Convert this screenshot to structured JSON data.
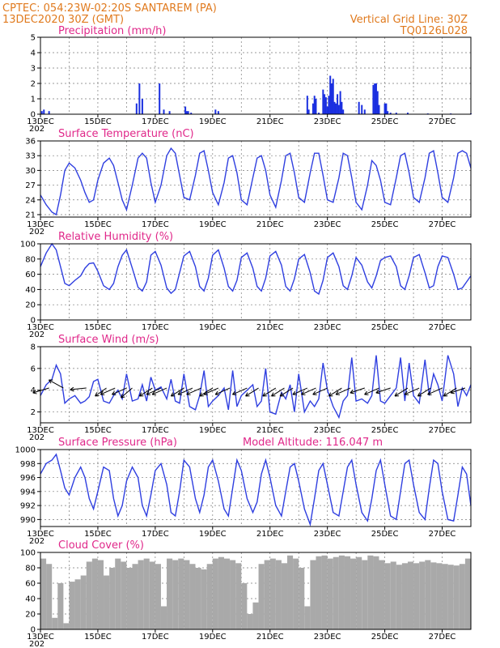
{
  "header": {
    "line1": "CPTEC:   054:23W-02:20S   SANTAREM (PA)",
    "line2": "13DEC2020 30Z (GMT)",
    "grid_note": "Vertical Grid Line: 30Z",
    "run_code": "TQ0126L028"
  },
  "colors": {
    "header": "#e07a1e",
    "title": "#e0288a",
    "line": "#2f3fe0",
    "bar": "#1a2fe0",
    "cloud": "#a9a9a9"
  },
  "chart_data": [
    {
      "type": "bar",
      "title": "Precipitation (mm/h)",
      "ylim": [
        0,
        5
      ],
      "yticks": [
        "0",
        "1",
        "2",
        "3",
        "4",
        "5"
      ],
      "x_tick_labels": [
        "13DEC",
        "15DEC",
        "17DEC",
        "19DEC",
        "21DEC",
        "23DEC",
        "25DEC",
        "27DEC"
      ],
      "x_edge_label": "202",
      "x": [
        0.05,
        0.12,
        0.3,
        3.35,
        3.45,
        3.55,
        4.15,
        4.3,
        4.5,
        5.05,
        5.1,
        5.15,
        5.25,
        6.1,
        6.2,
        9.3,
        9.35,
        9.5,
        9.55,
        9.6,
        9.7,
        9.85,
        9.9,
        9.95,
        10.0,
        10.05,
        10.1,
        10.15,
        10.2,
        10.25,
        10.3,
        10.35,
        10.4,
        10.45,
        10.5,
        10.55,
        11.1,
        11.2,
        11.3,
        11.6,
        11.65,
        11.7,
        11.75,
        11.8,
        12.0,
        12.05,
        12.1,
        12.2,
        12.4,
        12.8,
        13.5,
        14.3,
        15.0
      ],
      "values": [
        0.2,
        0.3,
        0.2,
        0.7,
        2.0,
        1.0,
        2.0,
        0.3,
        0.2,
        0.5,
        0.2,
        0.2,
        0.1,
        0.3,
        0.2,
        1.2,
        0.3,
        0.7,
        1.2,
        1.0,
        0.1,
        1.6,
        1.3,
        1.1,
        0.5,
        1.2,
        2.5,
        2.0,
        2.3,
        0.8,
        0.7,
        1.3,
        0.6,
        1.5,
        0.8,
        0.3,
        0.8,
        0.6,
        0.3,
        1.9,
        2.0,
        2.0,
        1.5,
        0.6,
        0.7,
        0.7,
        0.2,
        0.1,
        0.1,
        0.1,
        0.05,
        0.05,
        0.05
      ]
    },
    {
      "type": "line",
      "title": "Surface Temperature (nC)",
      "ylim": [
        20.5,
        36
      ],
      "yticks": [
        "21",
        "24",
        "27",
        "30",
        "33",
        "36"
      ],
      "x_tick_labels": [
        "13DEC",
        "15DEC",
        "17DEC",
        "19DEC",
        "21DEC",
        "23DEC",
        "25DEC",
        "27DEC"
      ],
      "x_edge_label": "202",
      "x": [
        0,
        0.2,
        0.4,
        0.55,
        0.7,
        0.85,
        1.0,
        1.2,
        1.4,
        1.55,
        1.7,
        1.85,
        2.0,
        2.2,
        2.4,
        2.55,
        2.7,
        2.85,
        3.0,
        3.2,
        3.4,
        3.55,
        3.7,
        3.85,
        4.0,
        4.2,
        4.4,
        4.55,
        4.7,
        4.85,
        5.0,
        5.2,
        5.4,
        5.55,
        5.7,
        5.85,
        6.0,
        6.2,
        6.4,
        6.55,
        6.7,
        6.85,
        7.0,
        7.2,
        7.4,
        7.55,
        7.7,
        7.85,
        8.0,
        8.2,
        8.4,
        8.55,
        8.7,
        8.85,
        9.0,
        9.2,
        9.4,
        9.55,
        9.7,
        9.85,
        10.0,
        10.2,
        10.4,
        10.55,
        10.7,
        10.85,
        11.0,
        11.2,
        11.4,
        11.55,
        11.7,
        11.85,
        12.0,
        12.2,
        12.4,
        12.55,
        12.7,
        12.85,
        13.0,
        13.2,
        13.4,
        13.55,
        13.7,
        13.85,
        14.0,
        14.2,
        14.4,
        14.55,
        14.7,
        14.85,
        15.0
      ],
      "values": [
        25.0,
        23.0,
        21.5,
        21.0,
        25.0,
        30.0,
        31.5,
        30.5,
        28.0,
        25.5,
        23.5,
        24.0,
        28.0,
        31.5,
        32.5,
        31.0,
        27.5,
        24.0,
        22.0,
        27.0,
        32.5,
        33.5,
        32.5,
        27.5,
        23.5,
        27.0,
        33.0,
        34.5,
        33.5,
        29.0,
        24.5,
        24.0,
        29.0,
        33.5,
        34.0,
        30.0,
        25.5,
        23.0,
        27.5,
        32.5,
        33.0,
        29.5,
        24.0,
        23.0,
        28.5,
        32.5,
        33.0,
        30.0,
        25.0,
        22.5,
        28.0,
        33.0,
        33.5,
        29.5,
        24.5,
        23.5,
        29.5,
        33.5,
        33.5,
        29.0,
        24.0,
        23.5,
        28.5,
        33.5,
        33.0,
        28.5,
        23.5,
        22.0,
        27.0,
        32.0,
        31.0,
        28.0,
        23.5,
        23.0,
        28.5,
        33.0,
        33.5,
        29.5,
        24.5,
        23.5,
        28.5,
        33.5,
        34.0,
        29.5,
        24.5,
        23.5,
        28.5,
        33.5,
        34.0,
        33.5,
        30.5
      ]
    },
    {
      "type": "line",
      "title": "Relative Humidity (%)",
      "ylim": [
        0,
        100
      ],
      "yticks": [
        "0",
        "20",
        "40",
        "60",
        "80",
        "100"
      ],
      "x_tick_labels": [
        "13DEC",
        "15DEC",
        "17DEC",
        "19DEC",
        "21DEC",
        "23DEC",
        "25DEC",
        "27DEC"
      ],
      "x_edge_label": "202",
      "x": [
        0,
        0.2,
        0.4,
        0.55,
        0.7,
        0.85,
        1.0,
        1.2,
        1.4,
        1.55,
        1.7,
        1.85,
        2.0,
        2.2,
        2.4,
        2.55,
        2.7,
        2.85,
        3.0,
        3.2,
        3.4,
        3.55,
        3.7,
        3.85,
        4.0,
        4.2,
        4.4,
        4.55,
        4.7,
        4.85,
        5.0,
        5.2,
        5.4,
        5.55,
        5.7,
        5.85,
        6.0,
        6.2,
        6.4,
        6.55,
        6.7,
        6.85,
        7.0,
        7.2,
        7.4,
        7.55,
        7.7,
        7.85,
        8.0,
        8.2,
        8.4,
        8.55,
        8.7,
        8.85,
        9.0,
        9.2,
        9.4,
        9.55,
        9.7,
        9.85,
        10.0,
        10.2,
        10.4,
        10.55,
        10.7,
        10.85,
        11.0,
        11.2,
        11.4,
        11.55,
        11.7,
        11.85,
        12.0,
        12.2,
        12.4,
        12.55,
        12.7,
        12.85,
        13.0,
        13.2,
        13.4,
        13.55,
        13.7,
        13.85,
        14.0,
        14.2,
        14.4,
        14.55,
        14.7,
        14.85,
        15.0
      ],
      "values": [
        70,
        88,
        100,
        92,
        70,
        48,
        45,
        52,
        58,
        68,
        74,
        75,
        64,
        45,
        40,
        48,
        70,
        85,
        92,
        68,
        43,
        38,
        50,
        85,
        90,
        72,
        42,
        35,
        40,
        62,
        84,
        90,
        70,
        44,
        38,
        55,
        85,
        92,
        68,
        44,
        38,
        52,
        82,
        88,
        68,
        44,
        38,
        55,
        84,
        90,
        72,
        44,
        38,
        54,
        80,
        86,
        62,
        38,
        34,
        52,
        82,
        88,
        70,
        45,
        40,
        58,
        82,
        72,
        50,
        42,
        58,
        78,
        82,
        84,
        70,
        45,
        40,
        58,
        82,
        86,
        62,
        42,
        45,
        70,
        84,
        82,
        60,
        40,
        42,
        50,
        58
      ]
    },
    {
      "type": "line",
      "title": "Surface Wind (m/s)",
      "ylim": [
        1,
        8
      ],
      "yticks": [
        "2",
        "4",
        "6",
        "8"
      ],
      "x_tick_labels": [
        "13DEC",
        "15DEC",
        "17DEC",
        "19DEC",
        "21DEC",
        "23DEC",
        "25DEC",
        "27DEC"
      ],
      "x_edge_label": "202",
      "x": [
        0,
        0.2,
        0.4,
        0.55,
        0.7,
        0.85,
        1.0,
        1.2,
        1.4,
        1.55,
        1.7,
        1.85,
        2.0,
        2.2,
        2.4,
        2.55,
        2.7,
        2.85,
        3.0,
        3.2,
        3.4,
        3.55,
        3.7,
        3.85,
        4.0,
        4.2,
        4.4,
        4.55,
        4.7,
        4.85,
        5.0,
        5.2,
        5.4,
        5.55,
        5.7,
        5.85,
        6.0,
        6.2,
        6.4,
        6.55,
        6.7,
        6.85,
        7.0,
        7.2,
        7.4,
        7.55,
        7.7,
        7.85,
        8.0,
        8.2,
        8.4,
        8.55,
        8.7,
        8.85,
        9.0,
        9.2,
        9.4,
        9.55,
        9.7,
        9.85,
        10.0,
        10.2,
        10.4,
        10.55,
        10.7,
        10.85,
        11.0,
        11.2,
        11.4,
        11.55,
        11.7,
        11.85,
        12.0,
        12.2,
        12.4,
        12.55,
        12.7,
        12.85,
        13.0,
        13.2,
        13.4,
        13.55,
        13.7,
        13.85,
        14.0,
        14.2,
        14.4,
        14.55,
        14.7,
        14.85,
        15.0
      ],
      "values": [
        3.5,
        4.5,
        5.0,
        6.3,
        5.5,
        2.8,
        3.2,
        3.5,
        2.8,
        3.0,
        3.4,
        4.8,
        5.0,
        3.0,
        2.8,
        3.5,
        4.0,
        3.2,
        5.5,
        3.0,
        3.2,
        4.5,
        3.0,
        5.2,
        4.0,
        4.3,
        3.2,
        5.0,
        3.0,
        2.8,
        5.5,
        2.5,
        2.2,
        3.5,
        5.8,
        2.5,
        3.0,
        3.5,
        4.2,
        2.2,
        5.8,
        2.5,
        3.5,
        4.0,
        4.5,
        2.5,
        3.0,
        6.0,
        2.0,
        1.8,
        3.8,
        3.2,
        4.5,
        2.0,
        5.5,
        2.0,
        3.0,
        2.5,
        3.2,
        6.5,
        4.0,
        2.5,
        1.5,
        3.0,
        3.5,
        7.0,
        3.0,
        3.2,
        2.8,
        3.5,
        7.2,
        3.0,
        2.8,
        3.5,
        4.2,
        7.0,
        3.0,
        6.5,
        3.5,
        2.8,
        6.8,
        3.5,
        5.5,
        4.5,
        3.0,
        7.2,
        5.5,
        2.5,
        4.2,
        3.5,
        4.5
      ],
      "arrows_x": [
        0.3,
        0.8,
        1.6,
        2.3,
        2.6,
        3.0,
        3.2,
        3.9,
        4.2,
        4.4,
        5.0,
        5.3,
        5.6,
        6.0,
        6.2,
        6.6,
        7.2,
        7.6,
        8.2,
        8.5,
        8.8,
        9.3,
        9.6,
        10.0,
        10.5,
        10.8,
        11.3,
        11.8,
        12.2,
        12.8,
        13.2,
        13.6,
        14.0,
        14.5,
        14.8
      ],
      "arrows_u": [
        -1.0,
        -0.9,
        -1.0,
        -0.7,
        -0.9,
        -0.9,
        -0.7,
        -0.8,
        -0.9,
        -0.9,
        -0.8,
        -0.9,
        -0.9,
        -0.8,
        -0.9,
        -0.9,
        -0.9,
        -0.8,
        -0.8,
        -0.8,
        -0.8,
        -0.9,
        -0.9,
        -0.9,
        -0.8,
        -0.9,
        -0.9,
        -0.9,
        -0.9,
        -0.8,
        -0.9,
        -0.8,
        -0.9,
        -0.8,
        -0.9
      ],
      "arrows_v": [
        -0.3,
        0.5,
        -0.1,
        -0.5,
        -0.4,
        -0.4,
        -0.6,
        -0.5,
        -0.4,
        -0.4,
        -0.5,
        -0.4,
        -0.4,
        -0.5,
        -0.4,
        -0.4,
        -0.4,
        -0.5,
        -0.5,
        -0.5,
        -0.5,
        -0.4,
        -0.4,
        -0.4,
        -0.5,
        -0.4,
        -0.3,
        -0.4,
        -0.3,
        -0.5,
        -0.4,
        -0.5,
        -0.4,
        -0.5,
        -0.3
      ]
    },
    {
      "type": "line",
      "title": "Surface Pressure (hPa)",
      "annotation": "Model Altitude: 116.047 m",
      "ylim": [
        989,
        1000
      ],
      "yticks": [
        "990",
        "992",
        "994",
        "996",
        "998",
        "1000"
      ],
      "x_tick_labels": [
        "13DEC",
        "15DEC",
        "17DEC",
        "19DEC",
        "21DEC",
        "23DEC",
        "25DEC",
        "27DEC"
      ],
      "x_edge_label": "202",
      "x": [
        0,
        0.2,
        0.4,
        0.55,
        0.7,
        0.85,
        1.0,
        1.2,
        1.4,
        1.55,
        1.7,
        1.85,
        2.0,
        2.2,
        2.4,
        2.55,
        2.7,
        2.85,
        3.0,
        3.2,
        3.4,
        3.55,
        3.7,
        3.85,
        4.0,
        4.2,
        4.4,
        4.55,
        4.7,
        4.85,
        5.0,
        5.2,
        5.4,
        5.55,
        5.7,
        5.85,
        6.0,
        6.2,
        6.4,
        6.55,
        6.7,
        6.85,
        7.0,
        7.2,
        7.4,
        7.55,
        7.7,
        7.85,
        8.0,
        8.2,
        8.4,
        8.55,
        8.7,
        8.85,
        9.0,
        9.2,
        9.4,
        9.55,
        9.7,
        9.85,
        10.0,
        10.2,
        10.4,
        10.55,
        10.7,
        10.85,
        11.0,
        11.2,
        11.4,
        11.55,
        11.7,
        11.85,
        12.0,
        12.2,
        12.4,
        12.55,
        12.7,
        12.85,
        13.0,
        13.2,
        13.4,
        13.55,
        13.7,
        13.85,
        14.0,
        14.2,
        14.4,
        14.55,
        14.7,
        14.85,
        15.0
      ],
      "values": [
        996.5,
        998.0,
        998.5,
        999.3,
        997.0,
        994.5,
        993.5,
        996.0,
        997.5,
        996.0,
        993.0,
        991.5,
        994.0,
        997.5,
        997.0,
        993.0,
        990.5,
        992.0,
        995.5,
        997.5,
        996.0,
        992.0,
        990.5,
        993.5,
        997.0,
        998.0,
        995.0,
        991.0,
        990.5,
        994.0,
        998.5,
        997.5,
        993.0,
        991.0,
        993.5,
        997.5,
        998.5,
        995.5,
        991.5,
        990.5,
        994.5,
        998.5,
        997.0,
        993.0,
        991.0,
        992.5,
        996.5,
        998.5,
        996.0,
        992.0,
        990.5,
        994.0,
        997.5,
        998.0,
        995.5,
        991.5,
        989.3,
        993.0,
        997.0,
        998.0,
        995.0,
        991.0,
        990.5,
        994.0,
        997.5,
        998.5,
        995.0,
        991.0,
        989.8,
        993.0,
        997.0,
        998.5,
        995.0,
        990.5,
        990.0,
        994.0,
        998.0,
        998.5,
        995.0,
        991.0,
        990.0,
        994.5,
        998.5,
        998.0,
        994.0,
        990.0,
        989.8,
        993.5,
        997.5,
        996.5,
        992.0
      ]
    },
    {
      "type": "bar",
      "title": "Cloud Cover (%)",
      "ylim": [
        0,
        100
      ],
      "yticks": [
        "0",
        "20",
        "40",
        "60",
        "80",
        "100"
      ],
      "x_tick_labels": [
        "13DEC",
        "15DEC",
        "17DEC",
        "19DEC",
        "21DEC",
        "23DEC",
        "25DEC",
        "27DEC"
      ],
      "x_edge_label": "202",
      "x": [
        0.1,
        0.3,
        0.5,
        0.7,
        0.9,
        1.1,
        1.3,
        1.5,
        1.7,
        1.9,
        2.1,
        2.3,
        2.5,
        2.7,
        2.9,
        3.1,
        3.3,
        3.5,
        3.7,
        3.9,
        4.1,
        4.3,
        4.5,
        4.7,
        4.9,
        5.1,
        5.3,
        5.5,
        5.7,
        5.9,
        6.1,
        6.3,
        6.5,
        6.7,
        6.9,
        7.1,
        7.3,
        7.5,
        7.7,
        7.9,
        8.1,
        8.3,
        8.5,
        8.7,
        8.9,
        9.1,
        9.3,
        9.5,
        9.7,
        9.9,
        10.1,
        10.3,
        10.5,
        10.7,
        10.9,
        11.1,
        11.3,
        11.5,
        11.7,
        11.9,
        12.1,
        12.3,
        12.5,
        12.7,
        12.9,
        13.1,
        13.3,
        13.5,
        13.7,
        13.9,
        14.1,
        14.3,
        14.5,
        14.7,
        14.9
      ],
      "values": [
        92,
        85,
        15,
        60,
        8,
        62,
        65,
        70,
        88,
        92,
        90,
        70,
        80,
        92,
        88,
        80,
        85,
        90,
        92,
        88,
        85,
        30,
        92,
        90,
        92,
        90,
        85,
        80,
        78,
        85,
        92,
        94,
        92,
        90,
        86,
        60,
        20,
        35,
        85,
        90,
        92,
        90,
        86,
        96,
        92,
        80,
        30,
        90,
        95,
        96,
        92,
        94,
        96,
        95,
        92,
        94,
        90,
        96,
        95,
        90,
        86,
        88,
        84,
        86,
        88,
        86,
        88,
        90,
        87,
        86,
        85,
        84,
        83,
        85,
        92
      ]
    }
  ]
}
